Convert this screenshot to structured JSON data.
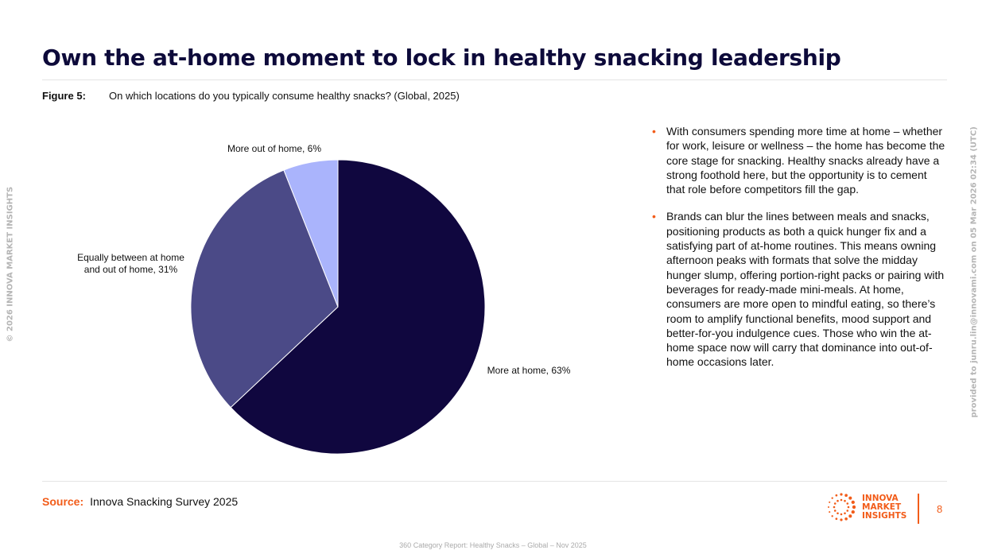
{
  "title": "Own the at-home moment to lock in healthy snacking leadership",
  "figure": {
    "label": "Figure 5:",
    "caption": "On which locations do you typically consume healthy snacks? (Global, 2025)"
  },
  "chart_data": {
    "type": "pie",
    "start": "12 o'clock, clockwise",
    "slices": [
      {
        "label": "More at home, 63%",
        "value": 63,
        "color": "#10073f"
      },
      {
        "label": "Equally between at home and out of home, 31%",
        "value": 31,
        "color": "#4b4a87"
      },
      {
        "label": "More out of home, 6%",
        "value": 6,
        "color": "#aab4fc"
      }
    ]
  },
  "bullets": [
    "With consumers spending more time at home – whether for work, leisure or wellness – the home has become the core stage for snacking. Healthy snacks already have a strong foothold here, but the opportunity is to cement that role before competitors fill the gap.",
    "Brands can blur the lines between meals and snacks, positioning products as both a quick hunger fix and a satisfying part of at-home routines. This means owning afternoon peaks with formats that solve the midday hunger slump, offering portion-right packs or pairing with beverages for ready-made mini-meals. At home, consumers are more open to mindful eating, so there’s room to amplify functional benefits, mood support and better-for-you indulgence cues. Those who win the at-home space now will carry that dominance into out-of-home occasions later."
  ],
  "source": {
    "label": "Source:",
    "text": "Innova Snacking Survey 2025"
  },
  "copyright": "© 2026 INNOVA MARKET INSIGHTS",
  "provided_to": "provided to junru.lin@innovami.com on 05 Mar 2026 02:34 (UTC)",
  "footer": "360 Category Report: Healthy Snacks – Global – Nov 2025",
  "logo": {
    "line1": "INNOVA",
    "line2": "MARKET",
    "line3": "INSIGHTS"
  },
  "page_number": "8",
  "accent_color": "#f25c19"
}
